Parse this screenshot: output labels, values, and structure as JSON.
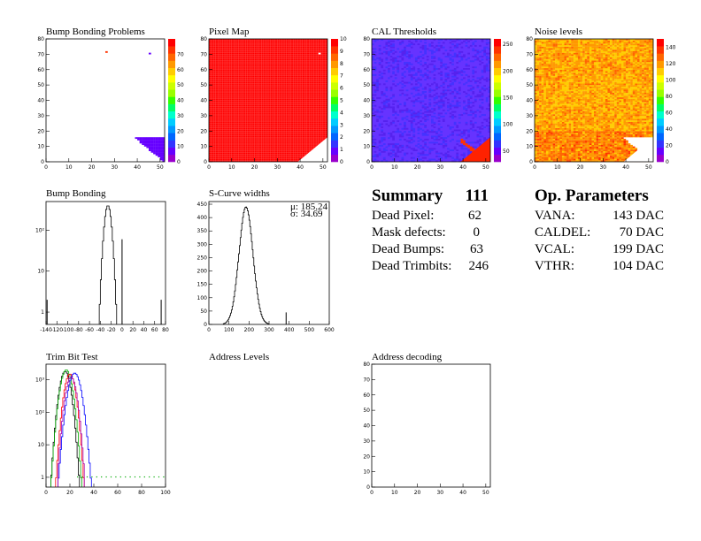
{
  "panels": {
    "bump_problems": {
      "title": "Bump Bonding Problems"
    },
    "pixel_map": {
      "title": "Pixel Map"
    },
    "cal_thresholds": {
      "title": "CAL Thresholds"
    },
    "noise_levels": {
      "title": "Noise levels"
    },
    "bump_bonding": {
      "title": "Bump Bonding"
    },
    "scurve_widths": {
      "title": "S-Curve widths",
      "stats": {
        "mu": "μ: 185.24",
        "sigma": "σ: 34.69"
      }
    },
    "trim_bit_test": {
      "title": "Trim Bit Test"
    },
    "address_levels": {
      "title": "Address Levels"
    },
    "address_decoding": {
      "title": "Address decoding"
    }
  },
  "summary": {
    "title": "Summary",
    "total": "111",
    "rows": [
      {
        "label": "Dead Pixel:",
        "value": "62"
      },
      {
        "label": "Mask defects:",
        "value": "0"
      },
      {
        "label": "Dead Bumps:",
        "value": "63"
      },
      {
        "label": "Dead Trimbits:",
        "value": "246"
      }
    ]
  },
  "op_parameters": {
    "title": "Op. Parameters",
    "rows": [
      {
        "label": "VANA:",
        "value": "143 DAC"
      },
      {
        "label": "CALDEL:",
        "value": "70 DAC"
      },
      {
        "label": "VCAL:",
        "value": "199 DAC"
      },
      {
        "label": "VTHR:",
        "value": "104 DAC"
      }
    ]
  },
  "colors": {
    "pixel_map_fill": "#ff0000",
    "cal_fill": "#6633ff",
    "palette": [
      "#9900cc",
      "#6600ff",
      "#3333ff",
      "#0066ff",
      "#0099ff",
      "#00ccff",
      "#00ffcc",
      "#00ff66",
      "#33ff00",
      "#99ff00",
      "#ccff00",
      "#ffff00",
      "#ffcc00",
      "#ff9900",
      "#ff6600",
      "#ff3300",
      "#ff0000"
    ],
    "trim_series": [
      "#000000",
      "#00aa00",
      "#ff0000",
      "#0000ff",
      "#aa00aa"
    ]
  },
  "chart_data": [
    {
      "id": "bump_problems",
      "type": "heatmap",
      "x_ticks": [
        "0",
        "10",
        "20",
        "30",
        "40",
        "50"
      ],
      "y_ticks": [
        "0",
        "10",
        "20",
        "30",
        "40",
        "50",
        "60",
        "70",
        "80"
      ],
      "z_ticks": [
        "0",
        "10",
        "20",
        "30",
        "40",
        "50",
        "60",
        "70"
      ],
      "xlim": [
        0,
        52
      ],
      "ylim": [
        0,
        80
      ],
      "zlim": [
        0,
        80
      ],
      "points": [
        [
          26,
          71,
          75
        ],
        [
          45,
          70,
          5
        ]
      ],
      "corner": {
        "from_col": 39,
        "rows": 16,
        "value": 8
      }
    },
    {
      "id": "pixel_map",
      "type": "heatmap",
      "x_ticks": [
        "0",
        "10",
        "20",
        "30",
        "40",
        "50"
      ],
      "y_ticks": [
        "0",
        "10",
        "20",
        "30",
        "40",
        "50",
        "60",
        "70",
        "80"
      ],
      "z_ticks": [
        "0",
        "1",
        "2",
        "3",
        "4",
        "5",
        "6",
        "7",
        "8",
        "9",
        "10"
      ],
      "xlim": [
        0,
        52
      ],
      "ylim": [
        0,
        80
      ],
      "zlim": [
        0,
        10
      ],
      "fill_value": 10,
      "dead_pixel": [
        48,
        70
      ]
    },
    {
      "id": "cal_thresholds",
      "type": "heatmap",
      "x_ticks": [
        "0",
        "10",
        "20",
        "30",
        "40",
        "50"
      ],
      "y_ticks": [
        "0",
        "10",
        "20",
        "30",
        "40",
        "50",
        "60",
        "70",
        "80"
      ],
      "z_ticks": [
        "50",
        "100",
        "150",
        "200",
        "250"
      ],
      "xlim": [
        0,
        52
      ],
      "ylim": [
        0,
        80
      ],
      "zlim": [
        30,
        260
      ],
      "fill_value": 40
    },
    {
      "id": "noise_levels",
      "type": "heatmap",
      "x_ticks": [
        "0",
        "10",
        "20",
        "30",
        "40",
        "50"
      ],
      "y_ticks": [
        "0",
        "10",
        "20",
        "30",
        "40",
        "50",
        "60",
        "70",
        "80"
      ],
      "z_ticks": [
        "0",
        "20",
        "40",
        "60",
        "80",
        "100",
        "120",
        "140"
      ],
      "xlim": [
        0,
        52
      ],
      "ylim": [
        0,
        80
      ],
      "zlim": [
        0,
        150
      ]
    },
    {
      "id": "bump_bonding",
      "type": "bar",
      "x_ticks": [
        "-140",
        "-120",
        "-100",
        "-80",
        "-60",
        "-40",
        "-20",
        "0",
        "20",
        "40",
        "60",
        "80"
      ],
      "y_ticks": [
        "1",
        "10",
        "10²"
      ],
      "xlim": [
        -140,
        80
      ],
      "ylim": [
        0.5,
        500
      ],
      "log_y": true,
      "gaussian": {
        "mean": -26,
        "sigma": 4.5,
        "peak": 400
      },
      "spikes": [
        [
          -138,
          2
        ],
        [
          0,
          60
        ],
        [
          72,
          2
        ]
      ]
    },
    {
      "id": "scurve_widths",
      "type": "bar",
      "x_ticks": [
        "0",
        "100",
        "200",
        "300",
        "400",
        "500",
        "600"
      ],
      "y_ticks": [
        "0",
        "50",
        "100",
        "150",
        "200",
        "250",
        "300",
        "350",
        "400",
        "450"
      ],
      "xlim": [
        0,
        600
      ],
      "ylim": [
        0,
        460
      ],
      "gaussian": {
        "mean": 185,
        "sigma": 34.7,
        "peak": 440
      },
      "spikes": [
        [
          385,
          45
        ]
      ]
    },
    {
      "id": "trim_bit_test",
      "type": "line",
      "x_ticks": [
        "0",
        "20",
        "40",
        "60",
        "80",
        "100"
      ],
      "y_ticks": [
        "1",
        "10",
        "10²",
        "10³"
      ],
      "xlim": [
        0,
        100
      ],
      "ylim": [
        0.5,
        3000
      ],
      "log_y": true,
      "series": [
        {
          "mean": 16,
          "sigma": 3,
          "peak": 1800
        },
        {
          "mean": 17,
          "sigma": 3.2,
          "peak": 2000
        },
        {
          "mean": 20,
          "sigma": 3,
          "peak": 1500
        },
        {
          "mean": 24,
          "sigma": 3.5,
          "peak": 1600
        },
        {
          "mean": 21,
          "sigma": 3,
          "peak": 1200
        }
      ]
    },
    {
      "id": "address_decoding",
      "type": "heatmap",
      "x_ticks": [
        "0",
        "10",
        "20",
        "30",
        "40",
        "50"
      ],
      "y_ticks": [
        "0",
        "10",
        "20",
        "30",
        "40",
        "50",
        "60",
        "70",
        "80"
      ],
      "xlim": [
        0,
        52
      ],
      "ylim": [
        0,
        80
      ]
    }
  ]
}
